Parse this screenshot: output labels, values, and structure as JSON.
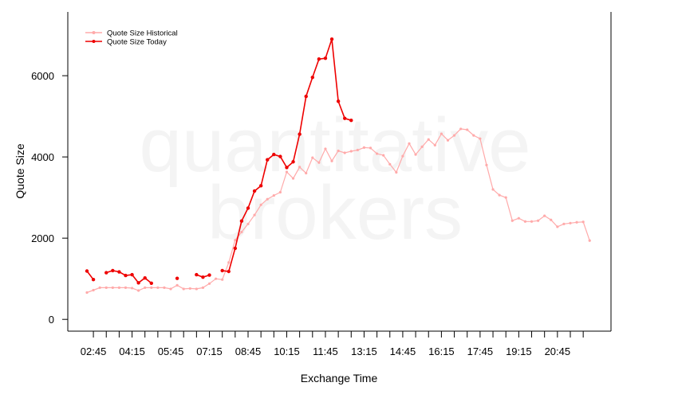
{
  "chart_data": {
    "type": "line",
    "watermark": [
      "quantitative",
      "brokers"
    ],
    "xlabel": "Exchange Time",
    "ylabel": "Quote Size",
    "categories": [
      null,
      "02:45",
      null,
      null,
      null,
      null,
      null,
      "04:15",
      null,
      null,
      null,
      null,
      null,
      "05:45",
      null,
      null,
      null,
      null,
      null,
      "07:15",
      null,
      null,
      null,
      null,
      null,
      "08:45",
      null,
      null,
      null,
      null,
      null,
      "10:15",
      null,
      null,
      null,
      null,
      null,
      "11:45",
      null,
      null,
      null,
      null,
      null,
      "13:15",
      null,
      null,
      null,
      null,
      null,
      "14:45",
      null,
      null,
      null,
      null,
      null,
      "16:15",
      null,
      null,
      null,
      null,
      null,
      "17:45",
      null,
      null,
      null,
      null,
      null,
      "19:15",
      null,
      null,
      null,
      null,
      null,
      "20:45",
      null,
      null,
      null,
      null,
      null
    ],
    "series": [
      {
        "name": "Quote Size Historical",
        "color": "#ffaaaa",
        "values": [
          660,
          720,
          780,
          780,
          780,
          780,
          780,
          770,
          710,
          780,
          780,
          780,
          780,
          750,
          840,
          750,
          760,
          750,
          780,
          880,
          1000,
          980,
          1400,
          1950,
          2150,
          2350,
          2570,
          2820,
          2960,
          3050,
          3130,
          3630,
          3470,
          3750,
          3600,
          3980,
          3860,
          4200,
          3900,
          4150,
          4100,
          4140,
          4170,
          4230,
          4220,
          4080,
          4040,
          3820,
          3620,
          4020,
          4330,
          4060,
          4250,
          4430,
          4290,
          4570,
          4410,
          4530,
          4690,
          4670,
          4530,
          4450,
          3800,
          3200,
          3060,
          3000,
          2430,
          2490,
          2410,
          2410,
          2430,
          2550,
          2450,
          2280,
          2350,
          2370,
          2390,
          2400,
          1940
        ]
      },
      {
        "name": "Quote Size Today",
        "color": "#ee0000",
        "values": [
          1190,
          980,
          null,
          1150,
          1200,
          1170,
          1080,
          1100,
          900,
          1020,
          890,
          null,
          null,
          null,
          1010,
          null,
          null,
          1100,
          1040,
          1090,
          null,
          1200,
          1180,
          1750,
          2420,
          2740,
          3160,
          3290,
          3930,
          4060,
          4010,
          3740,
          3880,
          4560,
          5490,
          5960,
          6410,
          6430,
          6900,
          5370,
          4950,
          4900,
          null,
          null,
          null,
          null,
          null,
          null,
          null,
          null,
          null,
          null,
          null,
          null,
          null,
          null,
          null,
          null,
          null,
          null,
          null,
          null,
          null,
          null,
          null,
          null,
          null,
          null,
          null,
          null,
          null,
          null,
          null,
          null,
          null,
          null,
          null,
          null,
          null
        ]
      }
    ],
    "ylim": [
      -290,
      7570
    ],
    "yticks": [
      0,
      2000,
      4000,
      6000
    ],
    "legend": "top-left"
  }
}
